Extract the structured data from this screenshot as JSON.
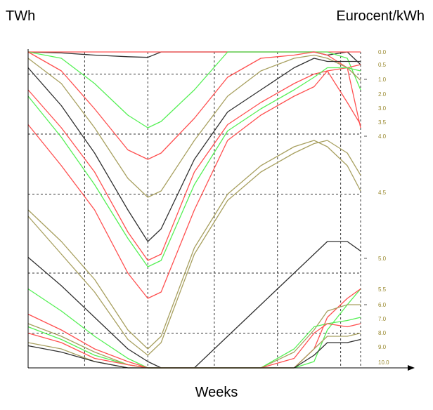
{
  "chart_data": {
    "type": "line",
    "xlabel": "Weeks",
    "ylabel_left": "TWh",
    "ylabel_right": "Eurocent/kWh",
    "grid": true,
    "right_axis_ticks": [
      "0.0",
      "0.5",
      "1.0",
      "2.0",
      "3.0",
      "3.5",
      "4.0",
      "4.5",
      "5.0",
      "5.5",
      "6.0",
      "7.0",
      "8.0",
      "9.0",
      "10.0"
    ],
    "colors": {
      "black": "#303030",
      "red": "#ff5050",
      "green": "#55f055",
      "olive": "#a8a060",
      "tick": "#9a8a30"
    },
    "x": [
      0,
      0.1,
      0.2,
      0.3,
      0.36,
      0.4,
      0.5,
      0.6,
      0.7,
      0.8,
      0.86,
      0.9,
      0.96,
      1.0
    ],
    "series": [
      {
        "name": "",
        "color": "black",
        "values": [
          1.0,
          0.997,
          0.99,
          0.985,
          0.983,
          1.0,
          1.0,
          1.0,
          1.0,
          1.0,
          1.0,
          0.99,
          1.0,
          0.96
        ]
      },
      {
        "name": "",
        "color": "red",
        "values": [
          1.0,
          1.0,
          1.0,
          1.0,
          1.0,
          1.0,
          1.0,
          1.0,
          1.0,
          1.0,
          1.0,
          1.0,
          1.0,
          1.0
        ]
      },
      {
        "name": "",
        "color": "green",
        "values": [
          1.0,
          0.98,
          0.9,
          0.8,
          0.76,
          0.78,
          0.88,
          1.0,
          1.0,
          1.0,
          1.0,
          1.0,
          0.98,
          0.88
        ]
      },
      {
        "name": "",
        "color": "red",
        "values": [
          1.0,
          0.94,
          0.82,
          0.69,
          0.66,
          0.68,
          0.79,
          0.92,
          0.98,
          0.99,
          1.0,
          0.99,
          0.95,
          0.76
        ]
      },
      {
        "name": "",
        "color": "olive",
        "values": [
          0.98,
          0.9,
          0.76,
          0.6,
          0.54,
          0.56,
          0.72,
          0.86,
          0.94,
          0.98,
          0.99,
          0.98,
          0.95,
          0.91
        ]
      },
      {
        "name": "",
        "color": "black",
        "values": [
          0.95,
          0.83,
          0.68,
          0.5,
          0.4,
          0.44,
          0.66,
          0.81,
          0.88,
          0.95,
          0.98,
          0.97,
          0.97,
          0.97
        ]
      },
      {
        "name": "",
        "color": "red",
        "values": [
          0.88,
          0.76,
          0.62,
          0.43,
          0.34,
          0.36,
          0.62,
          0.77,
          0.84,
          0.9,
          0.93,
          0.94,
          0.95,
          0.96
        ]
      },
      {
        "name": "",
        "color": "green",
        "values": [
          0.86,
          0.73,
          0.58,
          0.41,
          0.32,
          0.34,
          0.58,
          0.75,
          0.82,
          0.88,
          0.92,
          0.95,
          0.95,
          0.94
        ]
      },
      {
        "name": "",
        "color": "red",
        "values": [
          0.77,
          0.64,
          0.5,
          0.3,
          0.22,
          0.24,
          0.5,
          0.72,
          0.8,
          0.86,
          0.89,
          0.94,
          0.84,
          0.77
        ]
      },
      {
        "name": "",
        "color": "olive",
        "values": [
          0.5,
          0.4,
          0.28,
          0.12,
          0.06,
          0.1,
          0.38,
          0.55,
          0.64,
          0.7,
          0.72,
          0.7,
          0.64,
          0.56
        ]
      },
      {
        "name": "",
        "color": "olive",
        "values": [
          0.48,
          0.36,
          0.24,
          0.09,
          0.04,
          0.08,
          0.36,
          0.53,
          0.62,
          0.68,
          0.71,
          0.72,
          0.68,
          0.61
        ]
      },
      {
        "name": "",
        "color": "black",
        "values": [
          0.35,
          0.26,
          0.16,
          0.06,
          0.02,
          0.0,
          0.0,
          0.1,
          0.2,
          0.3,
          0.36,
          0.4,
          0.4,
          0.37
        ]
      },
      {
        "name": "",
        "color": "green",
        "values": [
          0.25,
          0.18,
          0.1,
          0.03,
          0.0,
          0.0,
          0.0,
          0.0,
          0.0,
          0.0,
          0.02,
          0.12,
          0.2,
          0.25
        ]
      },
      {
        "name": "",
        "color": "red",
        "values": [
          0.17,
          0.12,
          0.06,
          0.02,
          0.0,
          0.0,
          0.0,
          0.0,
          0.0,
          0.0,
          0.06,
          0.16,
          0.22,
          0.25
        ]
      },
      {
        "name": "",
        "color": "olive",
        "values": [
          0.14,
          0.1,
          0.05,
          0.01,
          0.0,
          0.0,
          0.0,
          0.0,
          0.0,
          0.05,
          0.12,
          0.18,
          0.2,
          0.2
        ]
      },
      {
        "name": "",
        "color": "green",
        "values": [
          0.13,
          0.09,
          0.04,
          0.01,
          0.0,
          0.0,
          0.0,
          0.0,
          0.0,
          0.06,
          0.13,
          0.14,
          0.15,
          0.16
        ]
      },
      {
        "name": "",
        "color": "red",
        "values": [
          0.11,
          0.08,
          0.03,
          0.01,
          0.0,
          0.0,
          0.0,
          0.0,
          0.0,
          0.03,
          0.11,
          0.14,
          0.13,
          0.14
        ]
      },
      {
        "name": "",
        "color": "olive",
        "values": [
          0.08,
          0.06,
          0.02,
          0.0,
          0.0,
          0.0,
          0.0,
          0.0,
          0.0,
          0.0,
          0.06,
          0.1,
          0.1,
          0.11
        ]
      },
      {
        "name": "",
        "color": "black",
        "values": [
          0.07,
          0.05,
          0.02,
          0.0,
          0.0,
          0.0,
          0.0,
          0.0,
          0.0,
          0.0,
          0.04,
          0.08,
          0.08,
          0.09
        ]
      }
    ]
  }
}
